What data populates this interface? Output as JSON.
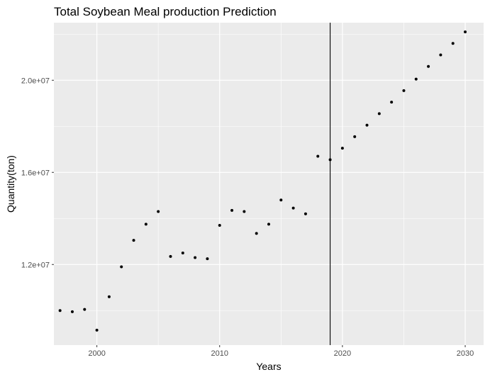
{
  "chart_data": {
    "type": "scatter",
    "title": "Total Soybean Meal production Prediction",
    "xlabel": "Years",
    "ylabel": "Quantity(ton)",
    "xlim": [
      1996.5,
      2031.5
    ],
    "ylim": [
      8500000,
      22500000
    ],
    "x_ticks": [
      2000,
      2010,
      2020,
      2030
    ],
    "x_tick_labels": [
      "2000",
      "2010",
      "2020",
      "2030"
    ],
    "y_ticks": [
      12000000,
      16000000,
      20000000
    ],
    "y_tick_labels": [
      "1.2e+07",
      "1.6e+07",
      "2.0e+07"
    ],
    "grid": true,
    "legend": "none",
    "vertical_line_x": 2019,
    "colors": {
      "panel_background": "#ebebeb",
      "grid": "#ffffff",
      "point": "#000000",
      "vline": "#000000"
    },
    "series": [
      {
        "x": [
          1997,
          1998,
          1999,
          2000,
          2001,
          2002,
          2003,
          2004,
          2005,
          2006,
          2007,
          2008,
          2009,
          2010,
          2011,
          2012,
          2013,
          2014,
          2015,
          2016,
          2017,
          2018,
          2019,
          2020,
          2021,
          2022,
          2023,
          2024,
          2025,
          2026,
          2027,
          2028,
          2029,
          2030
        ],
        "values": [
          10000000,
          9950000,
          10050000,
          9150000,
          10600000,
          11900000,
          13050000,
          13750000,
          14300000,
          12350000,
          12500000,
          12300000,
          12250000,
          13700000,
          14350000,
          14300000,
          13350000,
          13750000,
          14800000,
          14450000,
          14200000,
          16700000,
          16550000,
          17050000,
          17550000,
          18050000,
          18550000,
          19050000,
          19550000,
          20050000,
          20600000,
          21100000,
          21600000,
          22100000
        ]
      }
    ]
  }
}
